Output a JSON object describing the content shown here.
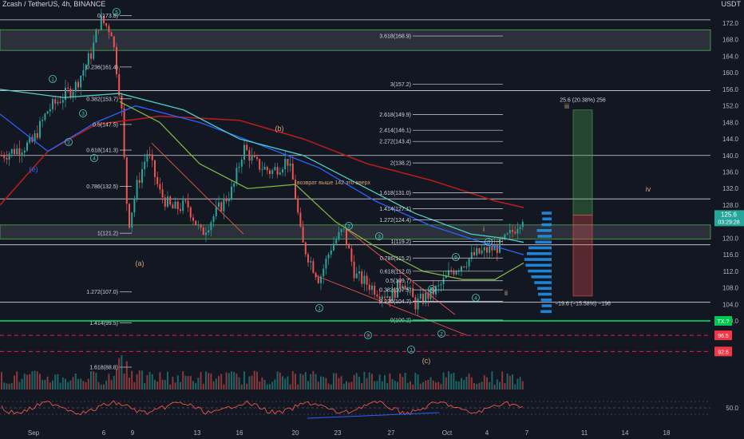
{
  "header": {
    "symbol_title": "Zcash / TetherUS, 4h, BINANCE",
    "currency": "USDT"
  },
  "colors": {
    "background": "#131722",
    "up_candle": "#26a69a",
    "down_candle": "#ef5350",
    "ema_red": "#b71c1c",
    "ema_blue": "#2962ff",
    "ema_teal": "#4dd0c4",
    "ema_green": "#7cb342",
    "fib_line": "#d1d4dc",
    "support_green": "#00e676",
    "resistance_red": "#ff1744",
    "channel_line": "#ef5350",
    "rsi_line": "#ef5350",
    "label_orange": "#d4a373",
    "volume_profile": "#2196f3"
  },
  "chart_data": {
    "type": "candlestick",
    "ylim": [
      97,
      174
    ],
    "price_axis_ticks": [
      "172.0",
      "168.0",
      "164.0",
      "160.0",
      "156.0",
      "152.0",
      "148.0",
      "144.0",
      "140.0",
      "136.0",
      "132.0",
      "128.0",
      "124.0",
      "120.0",
      "116.0",
      "112.0",
      "108.0",
      "104.0",
      "100.0"
    ],
    "rsi_axis_tick": "50.0",
    "time_axis_labels": [
      "Sep",
      "6",
      "9",
      "13",
      "16",
      "20",
      "23",
      "27",
      "Oct",
      "4",
      "7",
      "11",
      "14",
      "18"
    ],
    "last_price": "125.6",
    "last_price_timer": "03:29:28",
    "price_tags": [
      {
        "text": "TX.?",
        "color": "#00c853"
      },
      {
        "text": "96.5",
        "color": "#f23645"
      },
      {
        "text": "92.6",
        "color": "#f23645"
      }
    ],
    "fib_left": [
      {
        "label": "0(173.8)",
        "value": 173.8
      },
      {
        "label": "0.236(161.4)",
        "value": 161.4
      },
      {
        "label": "0.382(153.7)",
        "value": 153.7
      },
      {
        "label": "0.5(147.5)",
        "value": 147.5
      },
      {
        "label": "0.618(141.3)",
        "value": 141.3
      },
      {
        "label": "0.786(132.5)",
        "value": 132.5
      },
      {
        "label": "1(121.2)",
        "value": 121.2
      },
      {
        "label": "1.272(107.0)",
        "value": 107.0
      },
      {
        "label": "1.414(99.5)",
        "value": 99.5
      },
      {
        "label": "1.618(88.8)",
        "value": 88.8
      }
    ],
    "fib_right": [
      {
        "label": "3.618(168.9)",
        "value": 168.9
      },
      {
        "label": "3(157.2)",
        "value": 157.2
      },
      {
        "label": "2.618(149.9)",
        "value": 149.9
      },
      {
        "label": "2.414(146.1)",
        "value": 146.1
      },
      {
        "label": "2.272(143.4)",
        "value": 143.4
      },
      {
        "label": "2(138.2)",
        "value": 138.2
      },
      {
        "label": "1.618(131.0)",
        "value": 131.0
      },
      {
        "label": "1.414(127.1)",
        "value": 127.1
      },
      {
        "label": "1.272(124.4)",
        "value": 124.4
      },
      {
        "label": "1(119.2)",
        "value": 119.2
      },
      {
        "label": "0.786(115.2)",
        "value": 115.2
      },
      {
        "label": "0.618(112.0)",
        "value": 112.0
      },
      {
        "label": "0.5(109.7)",
        "value": 109.7
      },
      {
        "label": "0.382(107.5)",
        "value": 107.5
      },
      {
        "label": "0.236(104.7)",
        "value": 104.7
      },
      {
        "label": "0(100.2)",
        "value": 100.2
      }
    ],
    "horizontal_levels": [
      172.8,
      155.7,
      140.0,
      129.5,
      118.4,
      104.5
    ],
    "zones": [
      {
        "from": 165.4,
        "to": 170.4
      },
      {
        "from": 119.8,
        "to": 123.2
      }
    ],
    "support_level": 100.0,
    "resistance_levels_dashed": [
      96.5,
      92.6
    ],
    "wave_labels": [
      {
        "text": "(a)",
        "color": "#d4a373"
      },
      {
        "text": "(b)",
        "color": "#d4a373"
      },
      {
        "text": "(c)",
        "color": "#d4a373"
      },
      {
        "text": "i",
        "color": "#d4a373"
      },
      {
        "text": "ii",
        "color": "#d4a373"
      },
      {
        "text": "iii",
        "color": "#d4a373"
      },
      {
        "text": "iv",
        "color": "#d4a373"
      },
      {
        "text": "(e)",
        "color": "#2962ff"
      }
    ],
    "wave_circles": [
      "1",
      "2",
      "3",
      "4",
      "5",
      "1",
      "2",
      "3",
      "4",
      "5",
      "1",
      "2",
      "3",
      "4",
      "5"
    ],
    "annotation": "возврат выше 142 это вверх",
    "measure_up": "25.6 (20.38%) 256",
    "measure_down": "−19.6 (−15.58%) −196"
  }
}
